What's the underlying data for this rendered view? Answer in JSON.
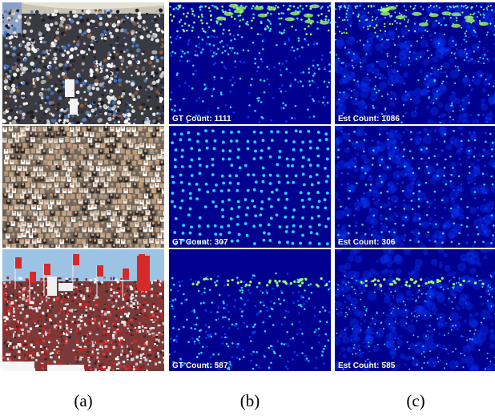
{
  "figure": {
    "rows": [
      {
        "scene": "crowd-plaza",
        "gt_label": "GT Count: 1111",
        "est_label": "Est Count: 1086"
      },
      {
        "scene": "crowd-stadium-stands",
        "gt_label": "GT Count: 307",
        "est_label": "Est Count: 306"
      },
      {
        "scene": "crowd-flags-banners",
        "gt_label": "GT Count: 587",
        "est_label": "Est Count: 585"
      }
    ],
    "column_labels": [
      "(a)",
      "(b)",
      "(c)"
    ],
    "colors": {
      "density_background": "#00008f",
      "density_low": "#0a3cff",
      "density_mid": "#28d7ff",
      "density_high": "#9cff6a"
    }
  }
}
